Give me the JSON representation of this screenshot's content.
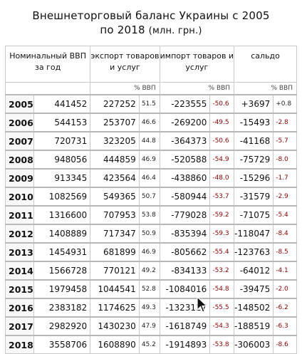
{
  "title_line1": "Внешнеторговый баланс Украины с 2005",
  "title_line2": "по 2018",
  "title_unit": "(млн. грн.)",
  "headers": {
    "gdp": "Номинальный ВВП за год",
    "export": "экспорт товаров и услуг",
    "import": "импорт товаров и услуг",
    "balance": "сальдо",
    "pct_label": "% ВВП"
  },
  "rows": [
    {
      "year": "2005",
      "gdp": "441452",
      "export": "227252",
      "export_pct": "51.5",
      "import": "-223555",
      "import_pct": "-50.6",
      "balance": "+3697",
      "balance_pct": "+0.8"
    },
    {
      "year": "2006",
      "gdp": "544153",
      "export": "253707",
      "export_pct": "46.6",
      "import": "-269200",
      "import_pct": "-49.5",
      "balance": "-15493",
      "balance_pct": "-2.8"
    },
    {
      "year": "2007",
      "gdp": "720731",
      "export": "323205",
      "export_pct": "44.8",
      "import": "-364373",
      "import_pct": "-50.6",
      "balance": "-41168",
      "balance_pct": "-5.7"
    },
    {
      "year": "2008",
      "gdp": "948056",
      "export": "444859",
      "export_pct": "46.9",
      "import": "-520588",
      "import_pct": "-54.9",
      "balance": "-75729",
      "balance_pct": "-8.0"
    },
    {
      "year": "2009",
      "gdp": "913345",
      "export": "423564",
      "export_pct": "46.4",
      "import": "-438860",
      "import_pct": "-48.0",
      "balance": "-15296",
      "balance_pct": "-1.7"
    },
    {
      "year": "2010",
      "gdp": "1082569",
      "export": "549365",
      "export_pct": "50.7",
      "import": "-580944",
      "import_pct": "-53.7",
      "balance": "-31579",
      "balance_pct": "-2.9"
    },
    {
      "year": "2011",
      "gdp": "1316600",
      "export": "707953",
      "export_pct": "53.8",
      "import": "-779028",
      "import_pct": "-59.2",
      "balance": "-71075",
      "balance_pct": "-5.4"
    },
    {
      "year": "2012",
      "gdp": "1408889",
      "export": "717347",
      "export_pct": "50.9",
      "import": "-835394",
      "import_pct": "-59.3",
      "balance": "-118047",
      "balance_pct": "-8.4"
    },
    {
      "year": "2013",
      "gdp": "1454931",
      "export": "681899",
      "export_pct": "46.9",
      "import": "-805662",
      "import_pct": "-55.4",
      "balance": "-123763",
      "balance_pct": "-8.5"
    },
    {
      "year": "2014",
      "gdp": "1566728",
      "export": "770121",
      "export_pct": "49.2",
      "import": "-834133",
      "import_pct": "-53.2",
      "balance": "-64012",
      "balance_pct": "-4.1"
    },
    {
      "year": "2015",
      "gdp": "1979458",
      "export": "1044541",
      "export_pct": "52.8",
      "import": "-1084016",
      "import_pct": "-54.8",
      "balance": "-39475",
      "balance_pct": "-2.0"
    },
    {
      "year": "2016",
      "gdp": "2383182",
      "export": "1174625",
      "export_pct": "49.3",
      "import": "-1323127",
      "import_pct": "-55.5",
      "balance": "-148502",
      "balance_pct": "-6.2"
    },
    {
      "year": "2017",
      "gdp": "2982920",
      "export": "1430230",
      "export_pct": "47.9",
      "import": "-1618749",
      "import_pct": "-54.3",
      "balance": "-188519",
      "balance_pct": "-6.3"
    },
    {
      "year": "2018",
      "gdp": "3558706",
      "export": "1608890",
      "export_pct": "45.2",
      "import": "-1914893",
      "import_pct": "-53.8",
      "balance": "-306003",
      "balance_pct": "-8.6"
    }
  ],
  "colors": {
    "negative_pct": "#8b0000",
    "border": "#c9c9c9"
  },
  "cursor_icon": "mouse-pointer-icon"
}
